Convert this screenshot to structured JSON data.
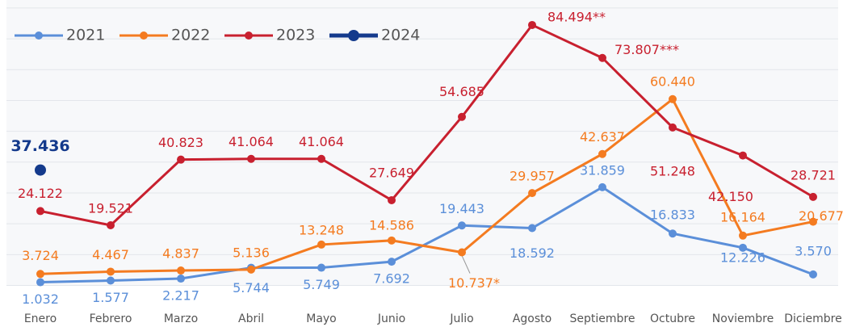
{
  "chart_data": {
    "type": "line",
    "categories": [
      "Enero",
      "Febrero",
      "Marzo",
      "Abril",
      "Mayo",
      "Junio",
      "Julio",
      "Agosto",
      "Septiembre",
      "Octubre",
      "Noviembre",
      "Diciembre"
    ],
    "series": [
      {
        "name": "2021",
        "color": "#5b8fd9",
        "values": [
          1032,
          1577,
          2217,
          5744,
          5749,
          7692,
          19443,
          18592,
          31859,
          16833,
          12226,
          3570
        ],
        "value_labels": [
          "1.032",
          "1.577",
          "2.217",
          "5.744",
          "5.749",
          "7.692",
          "19.443",
          "18.592",
          "31.859",
          "16.833",
          "12.226",
          "3.570"
        ]
      },
      {
        "name": "2022",
        "color": "#f47b20",
        "values": [
          3724,
          4467,
          4837,
          5136,
          13248,
          14586,
          10737,
          29957,
          42637,
          60440,
          16164,
          20677
        ],
        "value_labels": [
          "3.724",
          "4.467",
          "4.837",
          "5.136",
          "13.248",
          "14.586",
          "10.737*",
          "29.957",
          "42.637",
          "60.440",
          "16.164",
          "20.677"
        ]
      },
      {
        "name": "2023",
        "color": "#c8202f",
        "values": [
          24122,
          19521,
          40823,
          41064,
          41064,
          27649,
          54685,
          84494,
          73807,
          51248,
          42150,
          28721
        ],
        "value_labels": [
          "24.122",
          "19.521",
          "40.823",
          "41.064",
          "41.064",
          "27.649",
          "54.685",
          "84.494**",
          "73.807***",
          "51.248",
          "42.150",
          "28.721"
        ]
      },
      {
        "name": "2024",
        "color": "#143a8c",
        "values": [
          37436,
          null,
          null,
          null,
          null,
          null,
          null,
          null,
          null,
          null,
          null,
          null
        ],
        "value_labels": [
          "37.436",
          null,
          null,
          null,
          null,
          null,
          null,
          null,
          null,
          null,
          null,
          null
        ]
      }
    ],
    "ylim": [
      0,
      92600
    ],
    "yticks": [
      0,
      10000,
      20000,
      30000,
      40000,
      50000,
      60000,
      70000,
      80000,
      90000
    ],
    "grid": true,
    "legend": "top-left"
  }
}
